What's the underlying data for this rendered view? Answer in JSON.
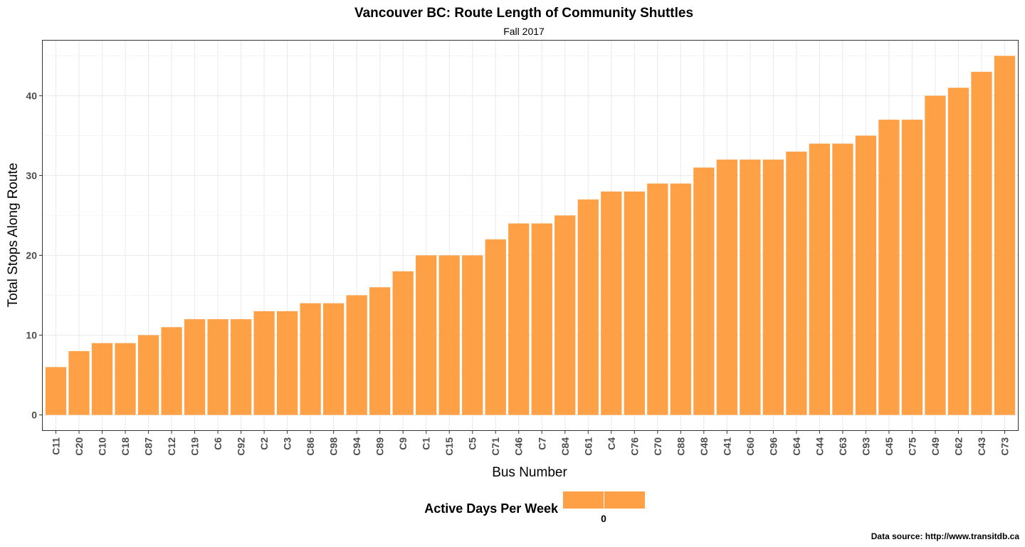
{
  "chart_data": {
    "type": "bar",
    "title": "Vancouver BC: Route Length of Community Shuttles",
    "subtitle": "Fall 2017",
    "xlabel": "Bus Number",
    "ylabel": "Total Stops Along Route",
    "ylim": [
      -2,
      47
    ],
    "yticks": [
      0,
      10,
      20,
      30,
      40
    ],
    "grid": true,
    "legend_position": "bottom",
    "legend_title": "Active Days Per Week",
    "legend_labels": [
      "0"
    ],
    "caption": "Data source: http://www.transitdb.ca",
    "bar_color": "#fda046",
    "categories": [
      "C11",
      "C20",
      "C10",
      "C18",
      "C87",
      "C12",
      "C19",
      "C6",
      "C92",
      "C2",
      "C3",
      "C86",
      "C98",
      "C94",
      "C89",
      "C9",
      "C1",
      "C15",
      "C5",
      "C71",
      "C46",
      "C7",
      "C84",
      "C61",
      "C4",
      "C76",
      "C70",
      "C88",
      "C48",
      "C41",
      "C60",
      "C96",
      "C64",
      "C44",
      "C63",
      "C93",
      "C45",
      "C75",
      "C49",
      "C62",
      "C43",
      "C73"
    ],
    "values": [
      6,
      8,
      9,
      9,
      10,
      11,
      12,
      12,
      12,
      13,
      13,
      14,
      14,
      15,
      16,
      18,
      20,
      20,
      20,
      22,
      24,
      24,
      25,
      27,
      28,
      28,
      29,
      29,
      31,
      32,
      32,
      32,
      33,
      34,
      34,
      35,
      37,
      37,
      40,
      41,
      43,
      45
    ]
  }
}
